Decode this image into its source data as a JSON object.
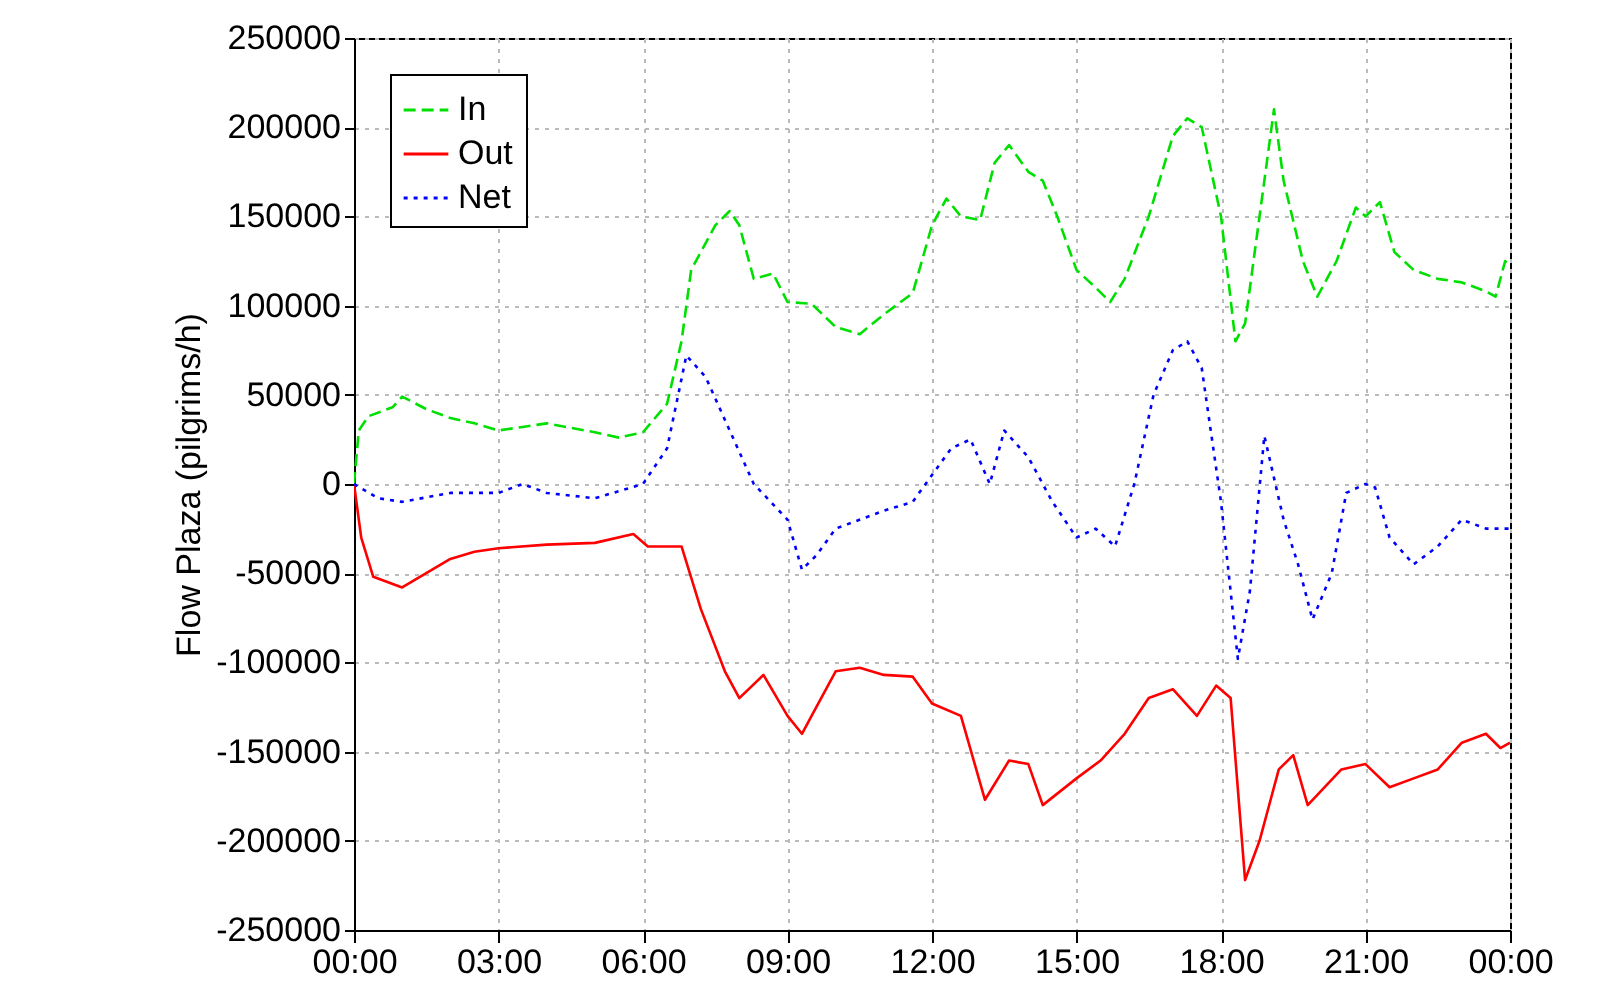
{
  "chart_data": {
    "type": "line",
    "ylabel": "Flow Plaza (pilgrims/h)",
    "xlim": [
      0,
      24
    ],
    "xticks": [
      {
        "value": 0,
        "label": "00:00"
      },
      {
        "value": 3,
        "label": "03:00"
      },
      {
        "value": 6,
        "label": "06:00"
      },
      {
        "value": 9,
        "label": "09:00"
      },
      {
        "value": 12,
        "label": "12:00"
      },
      {
        "value": 15,
        "label": "15:00"
      },
      {
        "value": 18,
        "label": "18:00"
      },
      {
        "value": 21,
        "label": "21:00"
      },
      {
        "value": 24,
        "label": "00:00"
      }
    ],
    "ylim": [
      -250000,
      250000
    ],
    "yticks": [
      -250000,
      -200000,
      -150000,
      -100000,
      -50000,
      0,
      50000,
      100000,
      150000,
      200000,
      250000
    ],
    "grid": true,
    "legend": "top left",
    "series": [
      {
        "name": "In",
        "color": "#00e000",
        "line_style": "dashed",
        "x": [
          0,
          0.1,
          0.3,
          0.8,
          1.0,
          1.5,
          2,
          2.5,
          3,
          3.5,
          4,
          5,
          5.5,
          6,
          6.5,
          6.8,
          7,
          7.5,
          7.8,
          8,
          8.3,
          8.7,
          9,
          9.5,
          10,
          10.5,
          11,
          11.6,
          12,
          12.3,
          12.6,
          13,
          13.3,
          13.6,
          14,
          14.3,
          14.6,
          15,
          15.4,
          15.7,
          16,
          16.5,
          17,
          17.3,
          17.6,
          18,
          18.3,
          18.5,
          18.8,
          19.1,
          19.3,
          19.7,
          20,
          20.4,
          20.8,
          21,
          21.3,
          21.6,
          22,
          22.5,
          23,
          23.5,
          23.7,
          23.9,
          24
        ],
        "values": [
          0,
          30000,
          38000,
          43000,
          49000,
          42000,
          37000,
          34000,
          30000,
          32000,
          34000,
          29000,
          26000,
          29000,
          45000,
          80000,
          120000,
          145000,
          153000,
          145000,
          115000,
          118000,
          102000,
          101000,
          88000,
          84000,
          95000,
          107000,
          145000,
          160000,
          150000,
          148000,
          180000,
          190000,
          175000,
          170000,
          150000,
          120000,
          110000,
          102000,
          115000,
          150000,
          195000,
          205000,
          200000,
          150000,
          80000,
          90000,
          150000,
          210000,
          170000,
          125000,
          105000,
          125000,
          155000,
          150000,
          158000,
          130000,
          120000,
          115000,
          113000,
          108000,
          105000,
          125000,
          122000
        ]
      },
      {
        "name": "Out",
        "color": "#ff0000",
        "line_style": "solid",
        "x": [
          0,
          0.15,
          0.4,
          1.0,
          1.5,
          2,
          2.5,
          3,
          4,
          5,
          5.8,
          6.1,
          6.8,
          7.2,
          7.7,
          8,
          8.5,
          9.0,
          9.3,
          9.5,
          10,
          10.5,
          11,
          11.6,
          12,
          12.6,
          13.1,
          13.6,
          14,
          14.3,
          15,
          15.5,
          16,
          16.5,
          17,
          17.5,
          17.9,
          18.2,
          18.5,
          18.8,
          19.2,
          19.5,
          19.8,
          20.5,
          21,
          21.5,
          22,
          22.5,
          23,
          23.5,
          23.8,
          24
        ],
        "values": [
          0,
          -30000,
          -52000,
          -58000,
          -50000,
          -42000,
          -38000,
          -36000,
          -34000,
          -33000,
          -28000,
          -35000,
          -35000,
          -70000,
          -105000,
          -120000,
          -107000,
          -130000,
          -140000,
          -130000,
          -105000,
          -103000,
          -107000,
          -108000,
          -123000,
          -130000,
          -177000,
          -155000,
          -157000,
          -180000,
          -165000,
          -155000,
          -140000,
          -120000,
          -115000,
          -130000,
          -113000,
          -120000,
          -222000,
          -200000,
          -160000,
          -152000,
          -180000,
          -160000,
          -157000,
          -170000,
          -165000,
          -160000,
          -145000,
          -140000,
          -148000,
          -145000
        ]
      },
      {
        "name": "Net",
        "color": "#0000ff",
        "line_style": "dotted",
        "x": [
          0,
          0.5,
          1,
          2,
          3,
          3.5,
          4,
          5,
          6,
          6.5,
          6.9,
          7.3,
          7.8,
          8.3,
          9,
          9.3,
          9.6,
          10,
          11,
          11.6,
          12,
          12.4,
          12.8,
          13.2,
          13.5,
          14,
          14.5,
          15,
          15.4,
          15.8,
          16.2,
          16.6,
          17,
          17.3,
          17.6,
          18.0,
          18.35,
          18.6,
          18.9,
          19.3,
          19.6,
          19.9,
          20.3,
          20.6,
          21.0,
          21.2,
          21.5,
          22,
          22.5,
          23,
          23.5,
          24
        ],
        "values": [
          0,
          -8000,
          -10000,
          -5000,
          -5000,
          0,
          -5000,
          -8000,
          0,
          20000,
          72000,
          60000,
          30000,
          0,
          -20000,
          -48000,
          -40000,
          -25000,
          -15000,
          -10000,
          5000,
          20000,
          25000,
          0,
          30000,
          15000,
          -10000,
          -30000,
          -25000,
          -35000,
          0,
          50000,
          75000,
          80000,
          65000,
          -10000,
          -98000,
          -60000,
          27000,
          -20000,
          -45000,
          -76000,
          -50000,
          -5000,
          0,
          -2000,
          -30000,
          -45000,
          -35000,
          -20000,
          -25000,
          -25000
        ]
      }
    ]
  }
}
